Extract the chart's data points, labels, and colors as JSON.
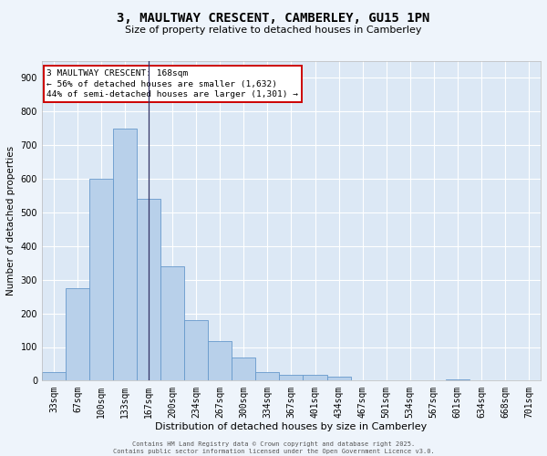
{
  "title_line1": "3, MAULTWAY CRESCENT, CAMBERLEY, GU15 1PN",
  "title_line2": "Size of property relative to detached houses in Camberley",
  "xlabel": "Distribution of detached houses by size in Camberley",
  "ylabel": "Number of detached properties",
  "bar_color": "#b8d0ea",
  "bar_edge_color": "#6699cc",
  "bg_color": "#dce8f5",
  "grid_color": "#ffffff",
  "categories": [
    "33sqm",
    "67sqm",
    "100sqm",
    "133sqm",
    "167sqm",
    "200sqm",
    "234sqm",
    "267sqm",
    "300sqm",
    "334sqm",
    "367sqm",
    "401sqm",
    "434sqm",
    "467sqm",
    "501sqm",
    "534sqm",
    "567sqm",
    "601sqm",
    "634sqm",
    "668sqm",
    "701sqm"
  ],
  "values": [
    25,
    275,
    600,
    750,
    540,
    340,
    180,
    118,
    68,
    25,
    18,
    18,
    13,
    0,
    0,
    0,
    0,
    5,
    0,
    0,
    0
  ],
  "ylim": [
    0,
    950
  ],
  "yticks": [
    0,
    100,
    200,
    300,
    400,
    500,
    600,
    700,
    800,
    900
  ],
  "vline_x": 4,
  "vline_color": "#333366",
  "annotation_text": "3 MAULTWAY CRESCENT: 168sqm\n← 56% of detached houses are smaller (1,632)\n44% of semi-detached houses are larger (1,301) →",
  "annotation_box_color": "#ffffff",
  "annotation_edge_color": "#cc0000",
  "footer_text": "Contains HM Land Registry data © Crown copyright and database right 2025.\nContains public sector information licensed under the Open Government Licence v3.0.",
  "figure_bg": "#eef4fb",
  "title1_fontsize": 10,
  "title2_fontsize": 8,
  "xlabel_fontsize": 8,
  "ylabel_fontsize": 7.5,
  "tick_fontsize": 7,
  "annot_fontsize": 6.8,
  "footer_fontsize": 5.0
}
